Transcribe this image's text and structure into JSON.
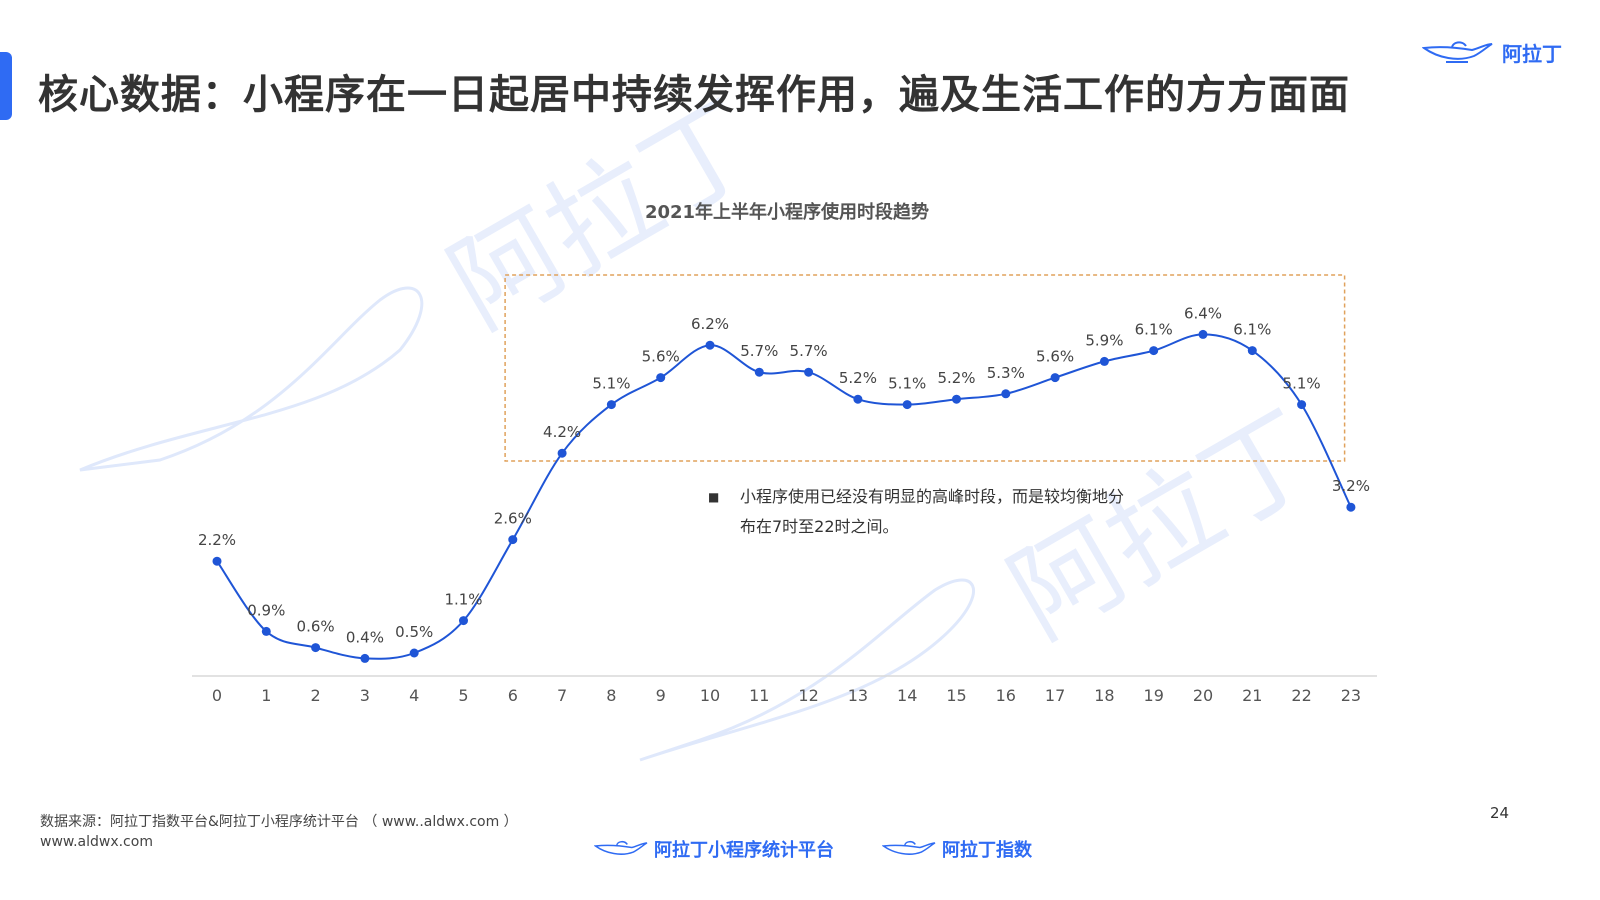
{
  "header": {
    "title": "核心数据：小程序在一日起居中持续发挥作用，遍及生活工作的方方面面",
    "logo_text": "阿拉丁"
  },
  "colors": {
    "accent": "#2f6bf3",
    "line": "#1f55d6",
    "highlight_box": "#e0a25c"
  },
  "chart_data": {
    "type": "line",
    "title": "2021年上半年小程序使用时段趋势",
    "xlabel": "",
    "ylabel": "",
    "categories": [
      "0",
      "1",
      "2",
      "3",
      "4",
      "5",
      "6",
      "7",
      "8",
      "9",
      "10",
      "11",
      "12",
      "13",
      "14",
      "15",
      "16",
      "17",
      "18",
      "19",
      "20",
      "21",
      "22",
      "23"
    ],
    "series": [
      {
        "values": [
          2.2,
          0.9,
          0.6,
          0.4,
          0.5,
          1.1,
          2.6,
          4.2,
          5.1,
          5.6,
          6.2,
          5.7,
          5.7,
          5.2,
          5.1,
          5.2,
          5.3,
          5.6,
          5.9,
          6.1,
          6.4,
          6.1,
          5.1,
          3.2
        ],
        "labels": [
          "2.2%",
          "0.9%",
          "0.6%",
          "0.4%",
          "0.5%",
          "1.1%",
          "2.6%",
          "4.2%",
          "5.1%",
          "5.6%",
          "6.2%",
          "5.7%",
          "5.7%",
          "5.2%",
          "5.1%",
          "5.2%",
          "5.3%",
          "5.6%",
          "5.9%",
          "6.1%",
          "6.4%",
          "6.1%",
          "5.1%",
          "3.2%"
        ]
      }
    ],
    "grid": false,
    "highlight_range": [
      "7",
      "22"
    ]
  },
  "note": {
    "bullet": "■",
    "line1": "小程序使用已经没有明显的高峰时段，而是较均衡地分",
    "line2": "布在7时至22时之间。"
  },
  "footer": {
    "source": "数据来源：阿拉丁指数平台&阿拉丁小程序统计平台 （ www..aldwx.com ）",
    "url": "www.aldwx.com",
    "page_number": "24",
    "logo1_text": "阿拉丁小程序统计平台",
    "logo2_text": "阿拉丁指数"
  }
}
